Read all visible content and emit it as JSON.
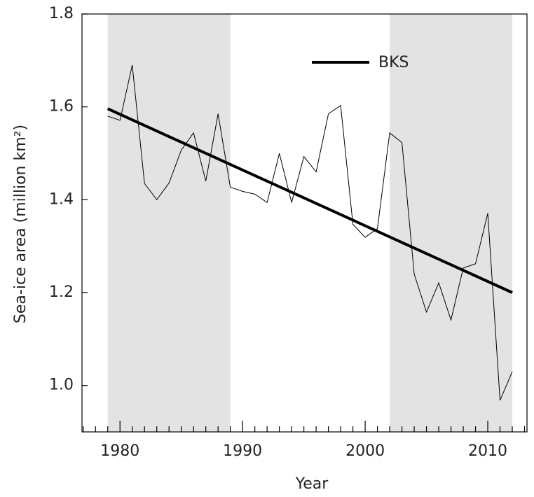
{
  "chart_data": {
    "type": "line",
    "x_label": "Year",
    "y_label": "Sea-ice area (million km²)",
    "x": [
      1979,
      1980,
      1981,
      1982,
      1983,
      1984,
      1985,
      1986,
      1987,
      1988,
      1989,
      1990,
      1991,
      1992,
      1993,
      1994,
      1995,
      1996,
      1997,
      1998,
      1999,
      2000,
      2001,
      2002,
      2003,
      2004,
      2005,
      2006,
      2007,
      2008,
      2009,
      2010,
      2011,
      2012
    ],
    "series": [
      {
        "color": "#000000",
        "width": 1,
        "values": [
          1.58,
          1.571,
          1.69,
          1.435,
          1.4,
          1.436,
          1.507,
          1.544,
          1.44,
          1.585,
          1.427,
          1.418,
          1.412,
          1.394,
          1.5,
          1.394,
          1.493,
          1.46,
          1.585,
          1.603,
          1.347,
          1.319,
          1.338,
          1.544,
          1.523,
          1.24,
          1.158,
          1.221,
          1.141,
          1.253,
          1.262,
          1.371,
          0.968,
          1.03
        ]
      }
    ],
    "trend": {
      "name": "BKS",
      "color": "#000000",
      "width": 4,
      "x": [
        1979,
        2012
      ],
      "values": [
        1.596,
        1.2
      ]
    },
    "shaded_regions": [
      [
        1979,
        1989
      ],
      [
        2002,
        2012
      ]
    ],
    "shade_color": "#e3e3e3",
    "xlim": [
      1976.9,
      2013.2
    ],
    "ylim": [
      0.9,
      1.8
    ],
    "xticks": [
      1980,
      1990,
      2000,
      2010
    ],
    "xticks_minor": [
      1977,
      1978,
      1979,
      1981,
      1982,
      1983,
      1984,
      1985,
      1986,
      1987,
      1988,
      1989,
      1991,
      1992,
      1993,
      1994,
      1995,
      1996,
      1997,
      1998,
      1999,
      2001,
      2002,
      2003,
      2004,
      2005,
      2006,
      2007,
      2008,
      2009,
      2011,
      2012,
      2013
    ],
    "yticks": [
      {
        "value": 1.0,
        "label": "1.0"
      },
      1.2,
      1.4,
      1.6,
      1.8
    ]
  }
}
